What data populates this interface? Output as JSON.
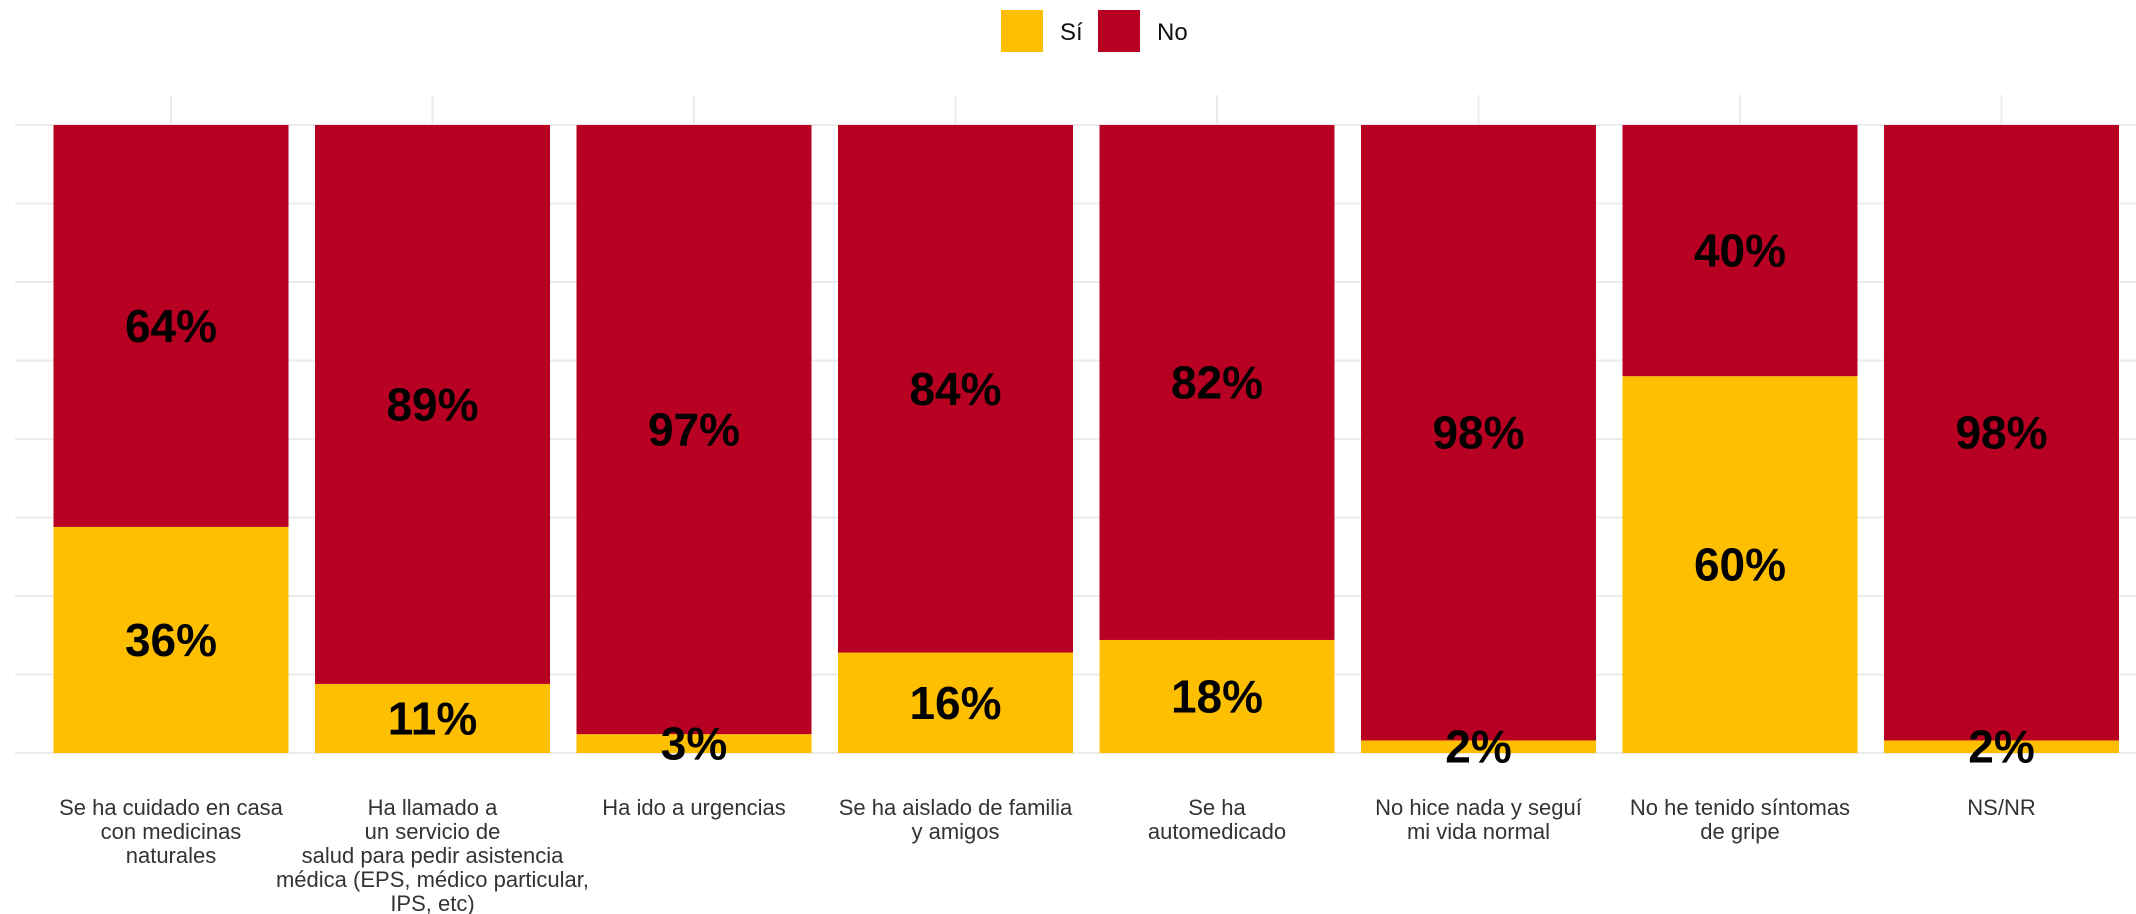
{
  "chart_data": {
    "type": "bar",
    "stacked": true,
    "categories": [
      "Se ha cuidado en casa\ncon medicinas\nnaturales",
      "Ha llamado a\nun servicio de\nsalud para pedir asistencia\nmédica (EPS, médico particular,\nIPS, etc)",
      "Ha ido a urgencias",
      "Se ha aislado de familia\ny amigos",
      "Se ha\nautomedicado",
      "No hice nada y seguí\nmi vida normal",
      "No he tenido síntomas\nde gripe",
      "NS/NR"
    ],
    "series": [
      {
        "name": "Sí",
        "color": "#FDBF00",
        "values": [
          36,
          11,
          3,
          16,
          18,
          2,
          60,
          2
        ]
      },
      {
        "name": "No",
        "color": "#B80022",
        "values": [
          64,
          89,
          97,
          84,
          82,
          98,
          40,
          98
        ]
      }
    ],
    "value_labels": {
      "Sí": [
        "36%",
        "11%",
        "3%",
        "16%",
        "18%",
        "2%",
        "60%",
        "2%"
      ],
      "No": [
        "64%",
        "89%",
        "97%",
        "84%",
        "82%",
        "98%",
        "40%",
        "98%"
      ]
    },
    "ylim": [
      0,
      100
    ],
    "legend": "top-center",
    "grid": true
  }
}
